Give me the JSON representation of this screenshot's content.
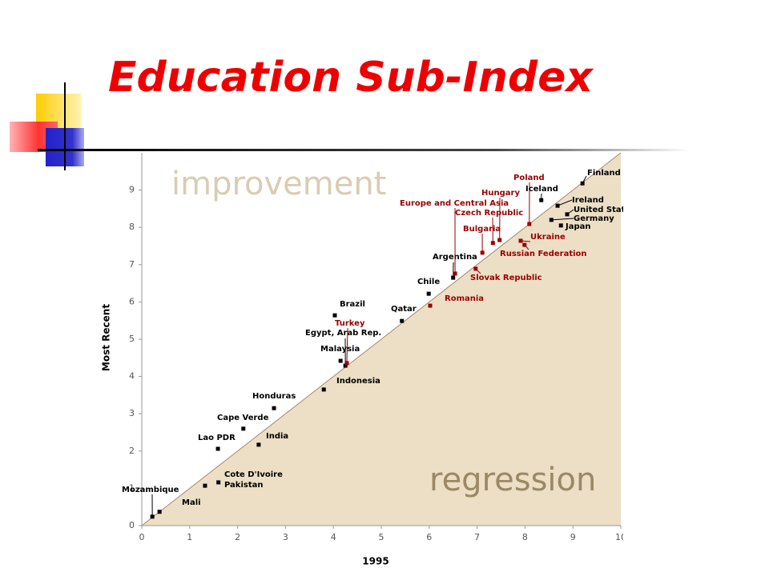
{
  "chart_data": {
    "type": "scatter",
    "title": "Education Sub-Index",
    "xlabel": "1995",
    "ylabel": "Most Recent",
    "annotations": [
      "improvement",
      "regression"
    ],
    "xlim": [
      0,
      10
    ],
    "ylim": [
      0,
      10
    ],
    "xticks": [
      0,
      1,
      2,
      3,
      4,
      5,
      6,
      7,
      8,
      9,
      10
    ],
    "yticks": [
      0,
      1,
      2,
      3,
      4,
      5,
      6,
      7,
      8,
      9
    ],
    "labels": [
      "Mozambique",
      "Mali",
      "Cote D'Ivoire",
      "Pakistan",
      "Lao PDR",
      "India",
      "Cape Verde",
      "Honduras",
      "Indonesia",
      "Malaysia",
      "Egypt, Arab Rep.",
      "Turkey",
      "Brazil",
      "Qatar",
      "Romania",
      "Chile",
      "Argentina",
      "Slovak Republic",
      "Europe and Central Asia",
      "Bulgaria",
      "Czech Republic",
      "Hungary",
      "Ukraine",
      "Russian Federation",
      "Poland",
      "Iceland",
      "Finland",
      "Ireland",
      "United States",
      "Germany",
      "Japan"
    ],
    "x": [
      0.22,
      0.37,
      1.32,
      1.6,
      1.59,
      2.44,
      2.12,
      2.76,
      3.8,
      4.15,
      4.25,
      4.28,
      4.03,
      5.43,
      6.02,
      5.99,
      6.5,
      6.97,
      6.54,
      7.11,
      7.33,
      7.47,
      7.91,
      7.99,
      8.09,
      8.34,
      9.2,
      8.68,
      8.88,
      8.55,
      8.75
    ],
    "y": [
      0.24,
      0.37,
      1.07,
      1.16,
      2.06,
      2.17,
      2.6,
      3.15,
      3.65,
      4.42,
      4.29,
      4.36,
      5.64,
      5.49,
      5.9,
      6.22,
      6.65,
      6.89,
      6.76,
      7.32,
      7.58,
      7.66,
      7.64,
      7.53,
      8.09,
      8.73,
      9.18,
      8.58,
      8.35,
      8.2,
      8.05
    ],
    "colors": [
      "#000000",
      "#000000",
      "#000000",
      "#000000",
      "#000000",
      "#000000",
      "#000000",
      "#000000",
      "#000000",
      "#000000",
      "#000000",
      "#990000",
      "#000000",
      "#000000",
      "#990000",
      "#000000",
      "#000000",
      "#990000",
      "#990000",
      "#990000",
      "#990000",
      "#990000",
      "#990000",
      "#990000",
      "#990000",
      "#000000",
      "#000000",
      "#000000",
      "#000000",
      "#000000",
      "#000000"
    ]
  }
}
